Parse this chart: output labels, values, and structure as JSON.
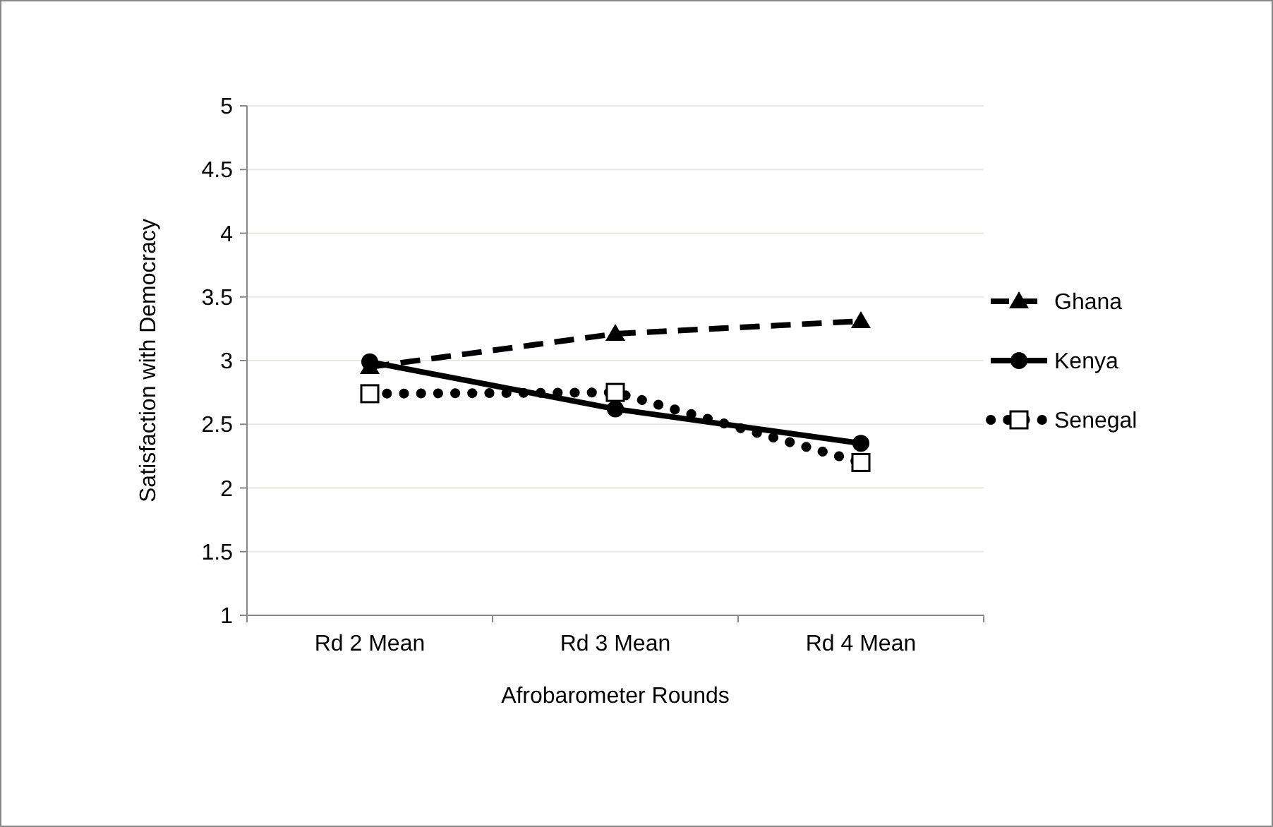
{
  "chart_data": {
    "type": "line",
    "xlabel": "Afrobarometer Rounds",
    "ylabel": "Satisfaction with Democracy",
    "categories": [
      "Rd 2 Mean",
      "Rd 3 Mean",
      "Rd 4 Mean"
    ],
    "series": [
      {
        "name": "Ghana",
        "color": "#000000",
        "values": [
          2.95,
          3.21,
          3.31
        ],
        "marker": "triangle",
        "line_style": "dashed"
      },
      {
        "name": "Kenya",
        "color": "#000000",
        "values": [
          2.99,
          2.62,
          2.35
        ],
        "marker": "circle",
        "line_style": "solid"
      },
      {
        "name": "Senegal",
        "color": "#000000",
        "values": [
          2.74,
          2.75,
          2.2
        ],
        "marker": "square",
        "line_style": "dotted"
      }
    ],
    "ylim": [
      1,
      5
    ],
    "yticks": [
      1,
      1.5,
      2,
      2.5,
      3,
      3.5,
      4,
      4.5,
      5
    ],
    "grid": "y",
    "legend": "right"
  }
}
